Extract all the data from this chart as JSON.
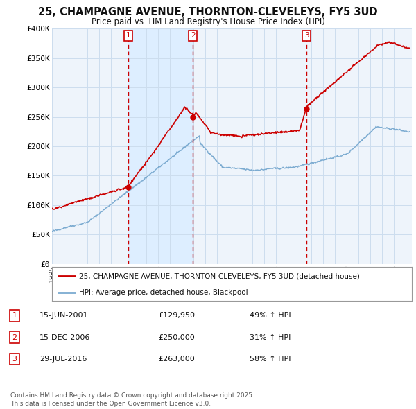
{
  "title": "25, CHAMPAGNE AVENUE, THORNTON-CLEVELEYS, FY5 3UD",
  "subtitle": "Price paid vs. HM Land Registry's House Price Index (HPI)",
  "ylim": [
    0,
    400000
  ],
  "yticks": [
    0,
    50000,
    100000,
    150000,
    200000,
    250000,
    300000,
    350000,
    400000
  ],
  "ytick_labels": [
    "£0",
    "£50K",
    "£100K",
    "£150K",
    "£200K",
    "£250K",
    "£300K",
    "£350K",
    "£400K"
  ],
  "xlim_start": 1995.0,
  "xlim_end": 2025.5,
  "sale_color": "#cc0000",
  "hpi_color": "#7aaad0",
  "shade_color": "#ddeeff",
  "sale_label": "25, CHAMPAGNE AVENUE, THORNTON-CLEVELEYS, FY5 3UD (detached house)",
  "hpi_label": "HPI: Average price, detached house, Blackpool",
  "transactions": [
    {
      "num": 1,
      "date": "15-JUN-2001",
      "price": 129950,
      "change": "49% ↑ HPI",
      "year": 2001.45
    },
    {
      "num": 2,
      "date": "15-DEC-2006",
      "price": 250000,
      "change": "31% ↑ HPI",
      "year": 2006.95
    },
    {
      "num": 3,
      "date": "29-JUL-2016",
      "price": 263000,
      "change": "58% ↑ HPI",
      "year": 2016.57
    }
  ],
  "footnote": "Contains HM Land Registry data © Crown copyright and database right 2025.\nThis data is licensed under the Open Government Licence v3.0.",
  "background_color": "#ffffff",
  "plot_bg_color": "#eef4fb",
  "grid_color": "#ccddee"
}
